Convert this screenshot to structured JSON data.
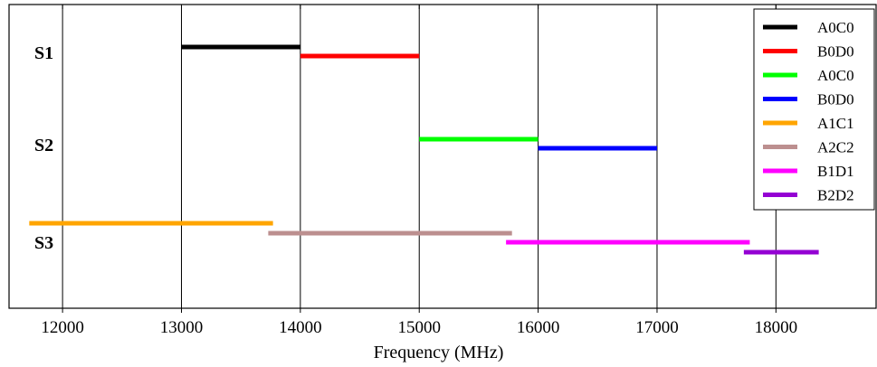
{
  "chart_data": {
    "type": "range-bar",
    "xlabel": "Frequency (MHz)",
    "ylabel": "",
    "xlim": [
      11550,
      18850
    ],
    "xticks": [
      12000,
      13000,
      14000,
      15000,
      16000,
      17000,
      18000
    ],
    "grid": "vertical",
    "legend_position": "top-right",
    "rows": [
      {
        "label": "S1"
      },
      {
        "label": "S2"
      },
      {
        "label": "S3"
      }
    ],
    "series": [
      {
        "name": "A0C0",
        "color": "#000000",
        "row": "S1",
        "start": 13000,
        "end": 14000
      },
      {
        "name": "B0D0",
        "color": "#ff0000",
        "row": "S1",
        "start": 14000,
        "end": 15000
      },
      {
        "name": "A0C0",
        "color": "#00ff00",
        "row": "S2",
        "start": 15000,
        "end": 16000
      },
      {
        "name": "B0D0",
        "color": "#0000ff",
        "row": "S2",
        "start": 16000,
        "end": 17000
      },
      {
        "name": "A1C1",
        "color": "#ffa500",
        "row": "S3",
        "start": 11720,
        "end": 13770
      },
      {
        "name": "A2C2",
        "color": "#bc8f8f",
        "row": "S3",
        "start": 13730,
        "end": 15780
      },
      {
        "name": "B1D1",
        "color": "#ff00ff",
        "row": "S3",
        "start": 15730,
        "end": 17780
      },
      {
        "name": "B2D2",
        "color": "#9400d3",
        "row": "S3",
        "start": 17730,
        "end": 18360
      }
    ]
  }
}
